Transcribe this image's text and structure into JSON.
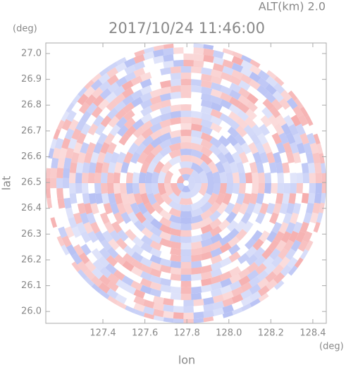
{
  "chart_data": {
    "type": "radar-ppi",
    "title": "2017/10/24 11:46:00",
    "subtitle": "ALT(km) 2.0",
    "x_label": "lon",
    "y_label": "lat",
    "x_unit": "(deg)",
    "y_unit": "(deg)",
    "xlim": [
      127.128,
      128.464
    ],
    "ylim": [
      25.954,
      27.041
    ],
    "xticks": [
      127.4,
      127.6,
      127.8,
      {
        "value": 128,
        "label": "128.0"
      },
      128.2,
      128.4
    ],
    "yticks": [
      {
        "value": 26,
        "label": "26.0"
      },
      26.1,
      26.2,
      26.3,
      26.4,
      26.5,
      26.6,
      26.7,
      26.8,
      26.9,
      {
        "value": 27,
        "label": "27.0"
      }
    ]
  }
}
